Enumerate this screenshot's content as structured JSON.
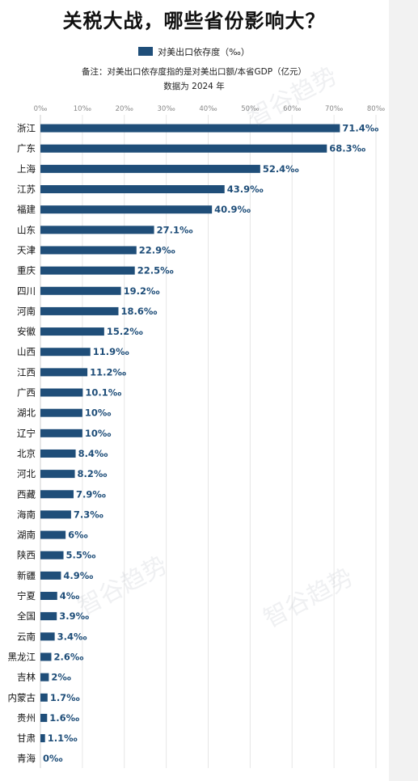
{
  "chart_data": {
    "type": "bar",
    "orientation": "horizontal",
    "title": "关税大战，哪些省份影响大？",
    "legend": "对美出口依存度（‰）",
    "note": "备注：对美出口依存度指的是对美出口额/本省GDP（亿元）",
    "year_note": "数据为 2024 年",
    "unit_suffix": "‰",
    "xlim": [
      0,
      80
    ],
    "x_ticks": [
      "0‰",
      "10‰",
      "20‰",
      "30‰",
      "40‰",
      "50‰",
      "60‰",
      "70‰",
      "80‰"
    ],
    "grid": true,
    "categories": [
      "浙江",
      "广东",
      "上海",
      "江苏",
      "福建",
      "山东",
      "天津",
      "重庆",
      "四川",
      "河南",
      "安徽",
      "山西",
      "江西",
      "广西",
      "湖北",
      "辽宁",
      "北京",
      "河北",
      "西藏",
      "海南",
      "湖南",
      "陕西",
      "新疆",
      "宁夏",
      "全国",
      "云南",
      "黑龙江",
      "吉林",
      "内蒙古",
      "贵州",
      "甘肃",
      "青海"
    ],
    "values": [
      71.4,
      68.3,
      52.4,
      43.9,
      40.9,
      27.1,
      22.9,
      22.5,
      19.2,
      18.6,
      15.2,
      11.9,
      11.2,
      10.1,
      10,
      10,
      8.4,
      8.2,
      7.9,
      7.3,
      6,
      5.5,
      4.9,
      4,
      3.9,
      3.4,
      2.6,
      2,
      1.7,
      1.6,
      1.1,
      0
    ],
    "value_labels": [
      "71.4‰",
      "68.3‰",
      "52.4‰",
      "43.9‰",
      "40.9‰",
      "27.1‰",
      "22.9‰",
      "22.5‰",
      "19.2‰",
      "18.6‰",
      "15.2‰",
      "11.9‰",
      "11.2‰",
      "10.1‰",
      "10‰",
      "10‰",
      "8.4‰",
      "8.2‰",
      "7.9‰",
      "7.3‰",
      "6‰",
      "5.5‰",
      "4.9‰",
      "4‰",
      "3.9‰",
      "3.4‰",
      "2.6‰",
      "2‰",
      "1.7‰",
      "1.6‰",
      "1.1‰",
      "0‰"
    ],
    "bar_color": "#1f4e79"
  },
  "watermark": "智谷趋势"
}
